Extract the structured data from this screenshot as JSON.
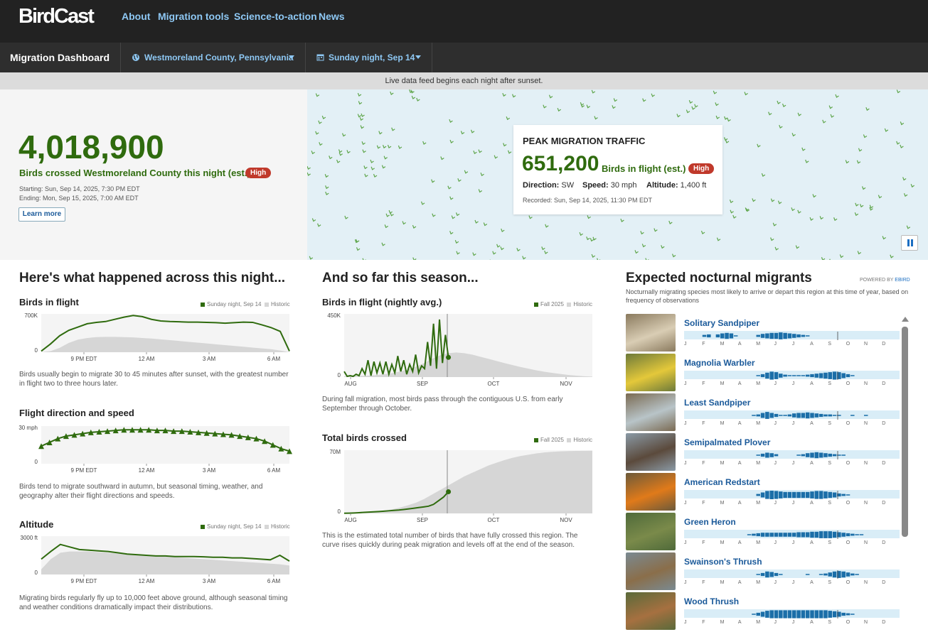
{
  "nav": {
    "logo": "BirdCast",
    "links": [
      "About",
      "Migration tools",
      "Science-to-action",
      "News"
    ]
  },
  "dashboard": {
    "title": "Migration Dashboard",
    "location": "Westmoreland County, Pennsylvania",
    "date": "Sunday night, Sep 14",
    "location_icon": "globe-icon",
    "date_icon": "calendar-icon"
  },
  "feed_notice": "Live data feed begins each night after sunset.",
  "hero": {
    "count": "4,018,900",
    "label": "Birds crossed Westmoreland County this night (est.)",
    "badge": "High",
    "starting": "Starting: Sun, Sep 14, 2025, 7:30 PM EDT",
    "ending": "Ending: Mon, Sep 15, 2025, 7:00 AM EDT",
    "learn_more": "Learn more"
  },
  "peak": {
    "title": "PEAK MIGRATION TRAFFIC",
    "count": "651,200",
    "label": "Birds in flight (est.)",
    "badge": "High",
    "direction_label": "Direction:",
    "direction": "SW",
    "speed_label": "Speed:",
    "speed": "30 mph",
    "altitude_label": "Altitude:",
    "altitude": "1,400 ft",
    "recorded": "Recorded: Sun, Sep 14, 2025, 11:30 PM EDT"
  },
  "night": {
    "heading": "Here's what happened across this night...",
    "legend_current": "Sunday night, Sep 14",
    "legend_historic": "Historic",
    "time_ticks": [
      "9 PM EDT",
      "12 AM",
      "3 AM",
      "6 AM"
    ],
    "flight": {
      "title": "Birds in flight",
      "ymax": "700K",
      "ymin": "0",
      "caption": "Birds usually begin to migrate 30 to 45 minutes after sunset, with the greatest number in flight two to three hours later."
    },
    "direction": {
      "title": "Flight direction and speed",
      "ymax": "30 mph",
      "ymin": "0",
      "caption": "Birds tend to migrate southward in autumn, but seasonal timing, weather, and geography alter their flight directions and speeds."
    },
    "altitude": {
      "title": "Altitude",
      "ymax": "3000 ft",
      "ymin": "0",
      "caption": "Migrating birds regularly fly up to 10,000 feet above ground, although seasonal timing and weather conditions dramatically impact their distributions."
    }
  },
  "season": {
    "heading": "And so far this season...",
    "legend_current": "Fall 2025",
    "legend_historic": "Historic",
    "month_ticks": [
      "AUG",
      "SEP",
      "OCT",
      "NOV"
    ],
    "avg": {
      "title": "Birds in flight (nightly avg.)",
      "ymax": "450K",
      "ymin": "0",
      "caption": "During fall migration, most birds pass through the contiguous U.S. from early September through October."
    },
    "total": {
      "title": "Total birds crossed",
      "ymax": "70M",
      "ymin": "0",
      "caption": "This is the estimated total number of birds that have fully crossed this region. The curve rises quickly during peak migration and levels off at the end of the season."
    }
  },
  "species": {
    "heading": "Expected nocturnal migrants",
    "powered_by": "POWERED BY",
    "powered_brand": "EBIRD",
    "subtitle": "Nocturnally migrating species most likely to arrive or depart this region at this time of year, based on frequency of observations",
    "months": [
      "J",
      "F",
      "M",
      "A",
      "M",
      "J",
      "J",
      "A",
      "S",
      "O",
      "N",
      "D"
    ],
    "list": [
      {
        "name": "Solitary Sandpiper",
        "freq": [
          0,
          0,
          0,
          0,
          2,
          3,
          0,
          3,
          5,
          6,
          5,
          1,
          0,
          0,
          0,
          0,
          2,
          4,
          5,
          6,
          6,
          7,
          6,
          5,
          4,
          3,
          2,
          1,
          0,
          0,
          0,
          0,
          0,
          0,
          0,
          0,
          0,
          0,
          0,
          0,
          0,
          0,
          0,
          0,
          0,
          0,
          0,
          0
        ]
      },
      {
        "name": "Magnolia Warbler",
        "freq": [
          0,
          0,
          0,
          0,
          0,
          0,
          0,
          0,
          0,
          0,
          0,
          0,
          0,
          0,
          0,
          0,
          1,
          3,
          6,
          8,
          7,
          4,
          2,
          1,
          1,
          1,
          1,
          2,
          3,
          4,
          5,
          6,
          7,
          8,
          7,
          5,
          3,
          1,
          0,
          0,
          0,
          0,
          0,
          0,
          0,
          0,
          0,
          0
        ]
      },
      {
        "name": "Least Sandpiper",
        "freq": [
          0,
          0,
          0,
          0,
          0,
          0,
          0,
          0,
          0,
          0,
          0,
          0,
          0,
          0,
          0,
          1,
          2,
          5,
          7,
          5,
          3,
          1,
          1,
          2,
          4,
          5,
          5,
          6,
          5,
          4,
          3,
          2,
          2,
          1,
          1,
          0,
          0,
          1,
          0,
          0,
          1,
          0,
          0,
          0,
          0,
          0,
          0,
          0
        ]
      },
      {
        "name": "Semipalmated Plover",
        "freq": [
          0,
          0,
          0,
          0,
          0,
          0,
          0,
          0,
          0,
          0,
          0,
          0,
          0,
          0,
          0,
          0,
          1,
          3,
          5,
          4,
          2,
          0,
          0,
          0,
          0,
          1,
          2,
          4,
          5,
          6,
          5,
          4,
          3,
          2,
          1,
          1,
          0,
          0,
          0,
          0,
          0,
          0,
          0,
          0,
          0,
          0,
          0,
          0
        ]
      },
      {
        "name": "American Redstart",
        "freq": [
          0,
          0,
          0,
          0,
          0,
          0,
          0,
          0,
          0,
          0,
          0,
          0,
          0,
          0,
          0,
          0,
          2,
          5,
          8,
          9,
          8,
          7,
          6,
          6,
          6,
          6,
          6,
          6,
          7,
          8,
          8,
          7,
          6,
          5,
          3,
          2,
          1,
          0,
          0,
          0,
          0,
          0,
          0,
          0,
          0,
          0,
          0,
          0
        ]
      },
      {
        "name": "Green Heron",
        "freq": [
          0,
          0,
          0,
          0,
          0,
          0,
          0,
          0,
          0,
          0,
          0,
          0,
          0,
          0,
          1,
          2,
          3,
          4,
          4,
          4,
          4,
          4,
          4,
          4,
          4,
          5,
          5,
          5,
          6,
          6,
          7,
          7,
          7,
          6,
          5,
          4,
          3,
          2,
          1,
          1,
          0,
          0,
          0,
          0,
          0,
          0,
          0,
          0
        ]
      },
      {
        "name": "Swainson's Thrush",
        "freq": [
          0,
          0,
          0,
          0,
          0,
          0,
          0,
          0,
          0,
          0,
          0,
          0,
          0,
          0,
          0,
          0,
          1,
          3,
          6,
          5,
          3,
          1,
          0,
          0,
          0,
          0,
          0,
          1,
          0,
          0,
          1,
          2,
          4,
          6,
          7,
          6,
          4,
          2,
          1,
          0,
          0,
          0,
          0,
          0,
          0,
          0,
          0,
          0
        ]
      },
      {
        "name": "Wood Thrush",
        "freq": [
          0,
          0,
          0,
          0,
          0,
          0,
          0,
          0,
          0,
          0,
          0,
          0,
          0,
          0,
          0,
          1,
          3,
          5,
          7,
          8,
          8,
          8,
          8,
          8,
          8,
          8,
          8,
          8,
          8,
          8,
          8,
          8,
          7,
          6,
          5,
          3,
          2,
          1,
          0,
          0,
          0,
          0,
          0,
          0,
          0,
          0,
          0,
          0
        ]
      }
    ]
  },
  "colors": {
    "accent_green": "#2f6b0e",
    "historic_gray": "#d6d6d6",
    "link_blue": "#1b5a9a",
    "badge_red": "#c0392b",
    "freq_bar": "#1b6ea8",
    "map_bg": "#e3f0f6"
  },
  "chart_data": [
    {
      "type": "area",
      "title": "Birds in flight",
      "ylim": [
        0,
        700000
      ],
      "x_ticks": [
        "9 PM EDT",
        "12 AM",
        "3 AM",
        "6 AM"
      ],
      "series": [
        {
          "name": "Sunday night, Sep 14",
          "values": [
            20000,
            150000,
            300000,
            400000,
            460000,
            520000,
            545000,
            560000,
            600000,
            640000,
            670000,
            650000,
            600000,
            570000,
            560000,
            555000,
            550000,
            550000,
            545000,
            540000,
            530000,
            540000,
            550000,
            545000,
            500000,
            450000,
            380000,
            20000
          ]
        },
        {
          "name": "Historic",
          "values": [
            0,
            20000,
            80000,
            170000,
            230000,
            260000,
            275000,
            280000,
            280000,
            275000,
            270000,
            260000,
            250000,
            235000,
            220000,
            205000,
            190000,
            175000,
            160000,
            145000,
            130000,
            115000,
            100000,
            85000,
            70000,
            55000,
            30000,
            0
          ]
        }
      ]
    },
    {
      "type": "line",
      "title": "Flight direction and speed",
      "ylim": [
        0,
        30
      ],
      "x_ticks": [
        "9 PM EDT",
        "12 AM",
        "3 AM",
        "6 AM"
      ],
      "series": [
        {
          "name": "Sunday night, Sep 14",
          "values": [
            14,
            17,
            20,
            22,
            23,
            24,
            25,
            25.5,
            26,
            26.5,
            27,
            27,
            27,
            27,
            26.5,
            26.5,
            26,
            26,
            25.5,
            25,
            24.5,
            24,
            23.5,
            23,
            22,
            21,
            20,
            18,
            15,
            12,
            10
          ]
        }
      ]
    },
    {
      "type": "area",
      "title": "Altitude",
      "ylim": [
        0,
        3000
      ],
      "x_ticks": [
        "9 PM EDT",
        "12 AM",
        "3 AM",
        "6 AM"
      ],
      "series": [
        {
          "name": "Sunday night, Sep 14",
          "values": [
            1200,
            1800,
            2350,
            2150,
            1950,
            1900,
            1850,
            1800,
            1700,
            1600,
            1550,
            1500,
            1450,
            1450,
            1400,
            1400,
            1400,
            1380,
            1350,
            1350,
            1300,
            1300,
            1250,
            1200,
            1150,
            1500,
            1050
          ]
        },
        {
          "name": "Historic",
          "values": [
            400,
            1200,
            1700,
            1800,
            1800,
            1800,
            1750,
            1700,
            1650,
            1600,
            1550,
            1500,
            1450,
            1400,
            1350,
            1300,
            1250,
            1200,
            1150,
            1100,
            1050,
            1000,
            950,
            900,
            850,
            800,
            700
          ]
        }
      ]
    },
    {
      "type": "area",
      "title": "Birds in flight (nightly avg.)",
      "ylim": [
        0,
        450000
      ],
      "x_ticks": [
        "AUG",
        "SEP",
        "OCT",
        "NOV"
      ],
      "series": [
        {
          "name": "Fall 2025",
          "values": [
            40000,
            5000,
            10000,
            5000,
            20000,
            10000,
            60000,
            20000,
            120000,
            10000,
            110000,
            30000,
            100000,
            20000,
            110000,
            20000,
            90000,
            30000,
            150000,
            40000,
            120000,
            20000,
            90000,
            40000,
            160000,
            30000,
            80000,
            60000,
            250000,
            80000,
            380000,
            60000,
            410000,
            100000,
            300000,
            140000
          ]
        },
        {
          "name": "Historic",
          "x_end": "NOV",
          "values": [
            5000,
            6000,
            8000,
            10000,
            14000,
            20000,
            28000,
            40000,
            55000,
            75000,
            100000,
            130000,
            155000,
            170000,
            175000,
            170000,
            160000,
            145000,
            130000,
            115000,
            100000,
            86000,
            72000,
            60000,
            48000,
            38000,
            30000,
            22000,
            15000,
            10000,
            6000,
            3000
          ]
        }
      ]
    },
    {
      "type": "area",
      "title": "Total birds crossed",
      "ylim": [
        0,
        70000000
      ],
      "x_ticks": [
        "AUG",
        "SEP",
        "OCT",
        "NOV"
      ],
      "series": [
        {
          "name": "Fall 2025",
          "values": [
            200000,
            300000,
            500000,
            800000,
            1200000,
            1500000,
            1800000,
            2100000,
            2500000,
            2900000,
            3300000,
            3700000,
            4300000,
            5000000,
            5700000,
            6500000,
            7200000,
            8000000,
            10000000,
            14000000,
            18000000,
            24000000
          ]
        },
        {
          "name": "Historic",
          "values": [
            200000,
            400000,
            800000,
            1300000,
            2000000,
            3000000,
            4500000,
            6500000,
            9000000,
            12000000,
            16000000,
            21000000,
            26000000,
            31000000,
            36000000,
            41000000,
            45000000,
            49000000,
            53000000,
            56000000,
            59000000,
            61500000,
            63500000,
            65000000,
            66500000,
            67500000,
            68200000,
            68700000,
            69000000,
            69200000,
            69300000,
            69400000
          ]
        }
      ]
    }
  ]
}
